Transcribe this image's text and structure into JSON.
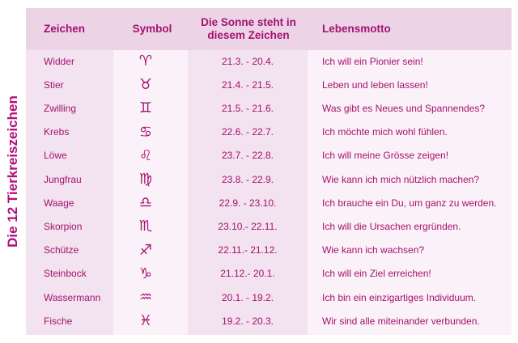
{
  "title": "Die 12 Tierkreiszeichen",
  "headers": {
    "sign": "Zeichen",
    "symbol": "Symbol",
    "period": "Die Sonne steht in diesem Zeichen",
    "motto": "Lebensmotto"
  },
  "rows": [
    {
      "sign": "Widder",
      "symbol": "♈︎",
      "period": "21.3. - 20.4.",
      "motto": "Ich will ein Pionier sein!"
    },
    {
      "sign": "Stier",
      "symbol": "♉︎",
      "period": "21.4. - 21.5.",
      "motto": "Leben und leben lassen!"
    },
    {
      "sign": "Zwilling",
      "symbol": "♊︎",
      "period": "21.5. - 21.6.",
      "motto": "Was gibt es Neues und Spannendes?"
    },
    {
      "sign": "Krebs",
      "symbol": "♋︎",
      "period": "22.6. - 22.7.",
      "motto": "Ich möchte mich wohl fühlen."
    },
    {
      "sign": "Löwe",
      "symbol": "♌︎",
      "period": "23.7. - 22.8.",
      "motto": "Ich will meine Grösse zeigen!"
    },
    {
      "sign": "Jungfrau",
      "symbol": "♍︎",
      "period": "23.8. - 22.9.",
      "motto": "Wie kann ich mich nützlich machen?"
    },
    {
      "sign": "Waage",
      "symbol": "♎︎",
      "period": "22.9. - 23.10.",
      "motto": "Ich brauche ein Du, um ganz zu werden."
    },
    {
      "sign": "Skorpion",
      "symbol": "♏︎",
      "period": "23.10.- 22.11.",
      "motto": "Ich will die Ursachen ergründen."
    },
    {
      "sign": "Schütze",
      "symbol": "♐︎",
      "period": "22.11.- 21.12.",
      "motto": "Wie kann ich wachsen?"
    },
    {
      "sign": "Steinbock",
      "symbol": "♑︎",
      "period": "21.12.- 20.1.",
      "motto": "Ich will ein Ziel erreichen!"
    },
    {
      "sign": "Wassermann",
      "symbol": "♒︎",
      "period": "20.1. - 19.2.",
      "motto": "Ich bin ein einzigartiges Individuum."
    },
    {
      "sign": "Fische",
      "symbol": "♓︎",
      "period": "19.2. - 20.3.",
      "motto": "Wir sind alle miteinander verbunden."
    }
  ],
  "colors": {
    "text": "#a3126f",
    "header_bg": "#ecd4e6",
    "col_dark": "#f3e2ef",
    "col_light": "#fbf1f8"
  }
}
